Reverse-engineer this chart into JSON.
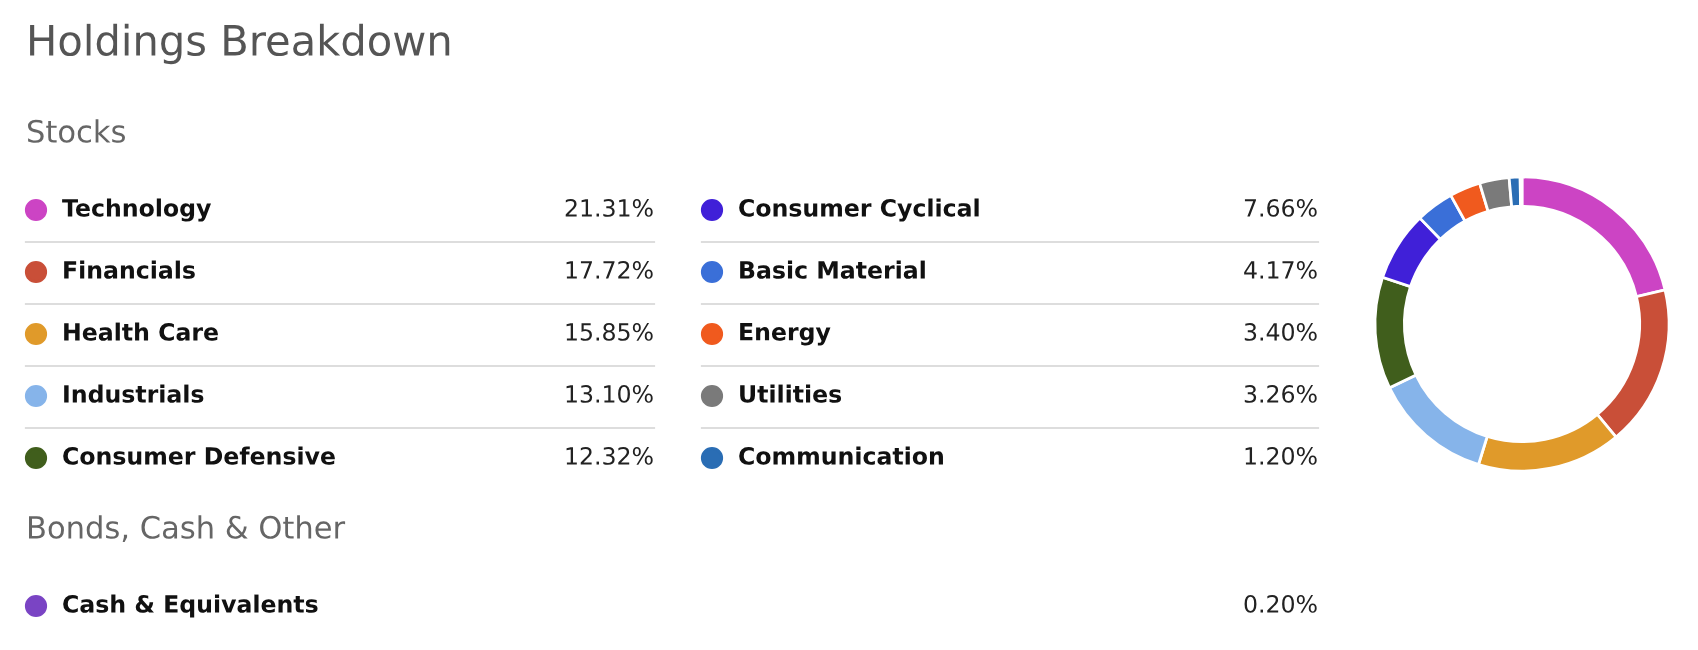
{
  "chart_data": {
    "type": "donut",
    "title": "Holdings Breakdown",
    "subtitle": "Stocks",
    "annotations": [
      "Bonds, Cash & Other"
    ],
    "categories": [
      "Technology",
      "Financials",
      "Health Care",
      "Industrials",
      "Consumer Defensive",
      "Consumer Cyclical",
      "Basic Material",
      "Energy",
      "Utilities",
      "Communication",
      "Cash & Equivalents"
    ],
    "values": [
      21.31,
      17.72,
      15.85,
      13.1,
      12.32,
      7.66,
      4.17,
      3.4,
      3.26,
      1.2,
      0.2
    ],
    "value_labels": [
      "21.31%",
      "17.72%",
      "15.85%",
      "13.10%",
      "12.32%",
      "7.66%",
      "4.17%",
      "3.40%",
      "3.26%",
      "1.20%",
      "0.20%"
    ],
    "colors": [
      "#cc44c4",
      "#c94f38",
      "#e09a2a",
      "#86b4ea",
      "#405e1c",
      "#4020d8",
      "#3a6fd8",
      "#f05a1e",
      "#7a7a7a",
      "#2a6db4",
      "#7a44c4"
    ],
    "legend": "left"
  }
}
